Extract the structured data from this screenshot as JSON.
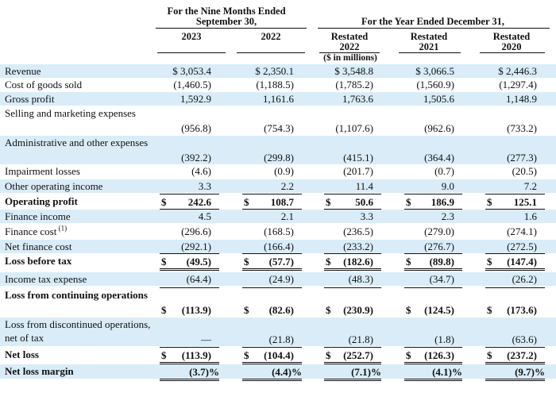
{
  "header": {
    "group_nine_months": "For the Nine Months Ended September 30,",
    "group_year": "For the Year Ended December 31,",
    "units": "($ in millions)",
    "columns": [
      {
        "restated": "",
        "year": "2023"
      },
      {
        "restated": "",
        "year": "2022"
      },
      {
        "restated": "Restated",
        "year": "2022"
      },
      {
        "restated": "Restated",
        "year": "2021"
      },
      {
        "restated": "Restated",
        "year": "2020"
      }
    ]
  },
  "rows": [
    {
      "label": "Revenue",
      "values": [
        "$ 3,053.4",
        "$ 2,350.1",
        "$ 3,548.8",
        "$ 3,066.5",
        "$ 2,446.3"
      ]
    },
    {
      "label": "Cost of goods sold",
      "values": [
        "(1,460.5)",
        "(1,188.5)",
        "(1,785.2)",
        "(1,560.9)",
        "(1,297.4)"
      ]
    },
    {
      "label": "Gross profit",
      "values": [
        "1,592.9",
        "1,161.6",
        "1,763.6",
        "1,505.6",
        "1,148.9"
      ]
    },
    {
      "label": "Selling and marketing expenses",
      "values": [
        "(956.8)",
        "(754.3)",
        "(1,107.6)",
        "(962.6)",
        "(733.2)"
      ]
    },
    {
      "label": "Administrative and other expenses",
      "values": [
        "(392.2)",
        "(299.8)",
        "(415.1)",
        "(364.4)",
        "(277.3)"
      ]
    },
    {
      "label": "Impairment losses",
      "values": [
        "(4.6)",
        "(0.9)",
        "(201.7)",
        "(0.7)",
        "(20.5)"
      ]
    },
    {
      "label": "Other operating income",
      "values": [
        "3.3",
        "2.2",
        "11.4",
        "9.0",
        "7.2"
      ]
    },
    {
      "label": "Operating profit",
      "values": [
        "242.6",
        "108.7",
        "50.6",
        "186.9",
        "125.1"
      ]
    },
    {
      "label": "Finance income",
      "values": [
        "4.5",
        "2.1",
        "3.3",
        "2.3",
        "1.6"
      ]
    },
    {
      "label": "Finance cost",
      "footnote": "(1)",
      "values": [
        "(296.6)",
        "(168.5)",
        "(236.5)",
        "(279.0)",
        "(274.1)"
      ]
    },
    {
      "label": "Net finance cost",
      "values": [
        "(292.1)",
        "(166.4)",
        "(233.2)",
        "(276.7)",
        "(272.5)"
      ]
    },
    {
      "label": "Loss before tax",
      "values": [
        "(49.5)",
        "(57.7)",
        "(182.6)",
        "(89.8)",
        "(147.4)"
      ]
    },
    {
      "label": "Income tax expense",
      "values": [
        "(64.4)",
        "(24.9)",
        "(48.3)",
        "(34.7)",
        "(26.2)"
      ]
    },
    {
      "label": "Loss from continuing operations",
      "values": [
        "(113.9)",
        "(82.6)",
        "(230.9)",
        "(124.5)",
        "(173.6)"
      ]
    },
    {
      "label": "Loss from discontinued operations, net of tax",
      "values": [
        "—",
        "(21.8)",
        "(21.8)",
        "(1.8)",
        "(63.6)"
      ]
    },
    {
      "label": "Net loss",
      "values": [
        "(113.9)",
        "(104.4)",
        "(252.7)",
        "(126.3)",
        "(237.2)"
      ]
    },
    {
      "label": "Net loss margin",
      "values": [
        "(3.7)%",
        "(4.4)%",
        "(7.1)%",
        "(4.1)%",
        "(9.7)%"
      ]
    }
  ],
  "currency_symbol": "$"
}
